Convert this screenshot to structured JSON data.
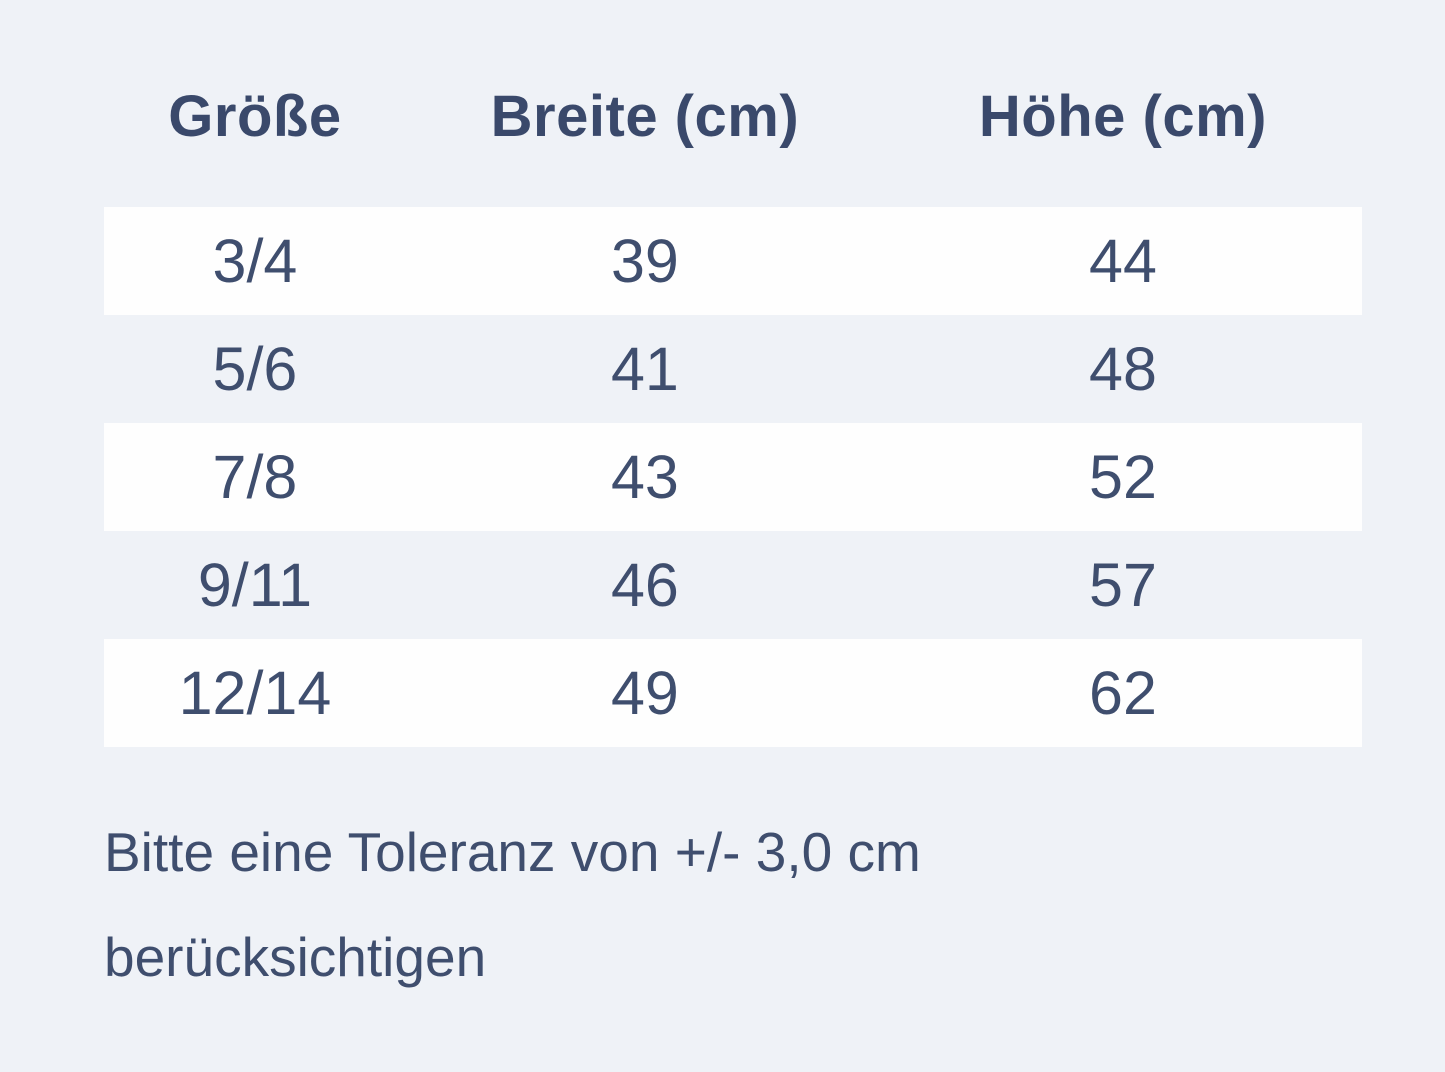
{
  "chart_data": {
    "type": "table",
    "title": "",
    "columns": [
      "Größe",
      "Breite (cm)",
      "Höhe (cm)"
    ],
    "rows": [
      [
        "3/4",
        "39",
        "44"
      ],
      [
        "5/6",
        "41",
        "48"
      ],
      [
        "7/8",
        "43",
        "52"
      ],
      [
        "9/11",
        "46",
        "57"
      ],
      [
        "12/14",
        "49",
        "62"
      ]
    ],
    "note_lines": [
      "Bitte eine Toleranz von +/- 3,0 cm",
      "berücksichtigen"
    ],
    "note_full": "Bitte eine Toleranz von +/- 3,0 cm berücksichtigen",
    "layout_hints": {
      "striped_rows": "odd rows white, even rows transparent",
      "alignment": "center",
      "grid": false
    }
  },
  "colors": {
    "background": "#eff2f7",
    "row_white": "#fefefe",
    "text": "#3f4e6e",
    "header_text": "#3a496b"
  }
}
